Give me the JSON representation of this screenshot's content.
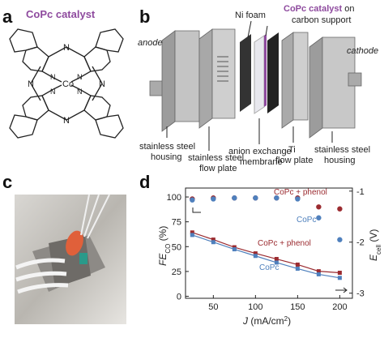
{
  "panels": {
    "a": "a",
    "b": "b",
    "c": "c",
    "d": "d"
  },
  "molecule": {
    "title": "CoPc catalyst",
    "metal": "Co",
    "nitrogen": "N"
  },
  "device": {
    "catalyst": "CoPc catalyst",
    "catalyst_tail": "on",
    "support": "carbon support",
    "ni_foam": "Ni foam",
    "anode": "anode",
    "cathode": "cathode",
    "left_housing": [
      "stainless steel",
      "housing"
    ],
    "left_flow_plate": [
      "stainless steel",
      "flow plate"
    ],
    "membrane": [
      "anion exchange",
      "membrane"
    ],
    "ti_flow_plate": [
      "Ti",
      "flow plate"
    ],
    "right_housing": [
      "stainless steel",
      "housing"
    ]
  },
  "chart_data": {
    "type": "scatter",
    "xlabel": [
      "J",
      " (mA/cm",
      "2",
      ")"
    ],
    "ylabel": [
      "FE",
      "CO",
      " (%)"
    ],
    "y2label": [
      "E",
      "cell",
      " (V)"
    ],
    "xlim": [
      17,
      215
    ],
    "xticks": [
      50,
      100,
      150,
      200
    ],
    "ylim": [
      -2,
      109
    ],
    "yticks": [
      0,
      25,
      50,
      75,
      100
    ],
    "y2lim": [
      -3.1,
      -0.94
    ],
    "y2ticks": [
      -1,
      -2,
      -3
    ],
    "x": [
      25,
      50,
      75,
      100,
      125,
      150,
      175,
      200
    ],
    "series": [
      {
        "name": "CoPc + phenol",
        "color": "#9b2b30",
        "marker": "circle",
        "line": false,
        "values": [
          98,
          99,
          99,
          99,
          99,
          99,
          90,
          88
        ]
      },
      {
        "name": "CoPc",
        "color": "#4f80bd",
        "marker": "circle",
        "line": false,
        "values": [
          97,
          98,
          99,
          99,
          99,
          98,
          79,
          57
        ]
      },
      {
        "name": "CoPc + phenol",
        "color": "#9b2b30",
        "marker": "square",
        "line": true,
        "axis": "y2",
        "values": [
          -1.81,
          -1.95,
          -2.1,
          -2.22,
          -2.33,
          -2.44,
          -2.57,
          -2.6
        ]
      },
      {
        "name": "CoPc",
        "color": "#4f80bd",
        "marker": "square",
        "line": true,
        "axis": "y2",
        "values": [
          -1.86,
          -2.0,
          -2.14,
          -2.27,
          -2.4,
          -2.52,
          -2.63,
          -2.7
        ]
      }
    ]
  }
}
